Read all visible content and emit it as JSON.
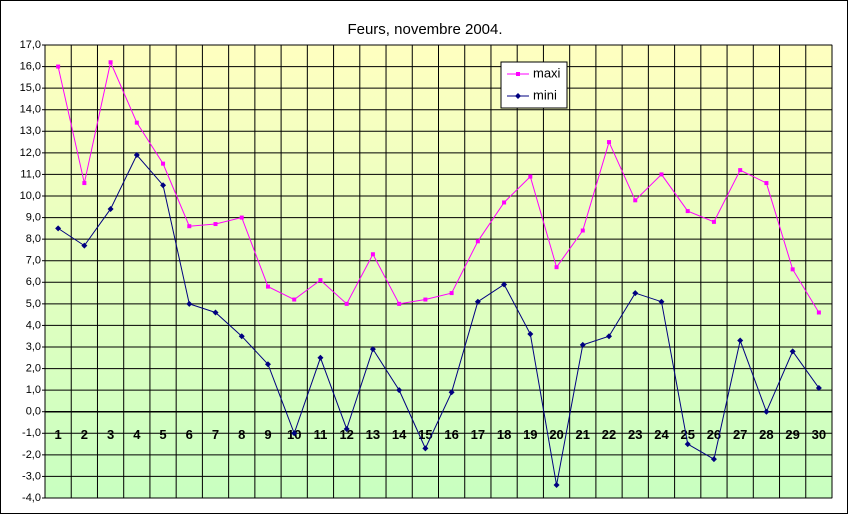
{
  "chart_data": {
    "type": "line",
    "title": "Feurs, novembre 2004.",
    "categories": [
      "1",
      "2",
      "3",
      "4",
      "5",
      "6",
      "7",
      "8",
      "9",
      "10",
      "11",
      "12",
      "13",
      "14",
      "15",
      "16",
      "17",
      "18",
      "19",
      "20",
      "21",
      "22",
      "23",
      "24",
      "25",
      "26",
      "27",
      "28",
      "29",
      "30"
    ],
    "series": [
      {
        "name": "maxi",
        "color": "#ff00ff",
        "marker": "square",
        "values": [
          16.0,
          10.6,
          16.2,
          13.4,
          11.5,
          8.6,
          8.7,
          9.0,
          5.8,
          5.2,
          6.1,
          5.0,
          7.3,
          5.0,
          5.2,
          5.5,
          7.9,
          9.7,
          10.9,
          6.7,
          8.4,
          12.5,
          9.8,
          11.0,
          9.3,
          8.8,
          11.2,
          10.6,
          6.6,
          4.6
        ]
      },
      {
        "name": "mini",
        "color": "#000080",
        "marker": "diamond",
        "values": [
          8.5,
          7.7,
          9.4,
          11.9,
          10.5,
          5.0,
          4.6,
          3.5,
          2.2,
          -1.0,
          2.5,
          -0.8,
          2.9,
          1.0,
          -1.7,
          0.9,
          5.1,
          5.9,
          3.6,
          -3.4,
          3.1,
          3.5,
          5.5,
          5.1,
          -1.5,
          -2.2,
          3.3,
          0.0,
          2.8,
          1.1
        ]
      }
    ],
    "ylim": [
      -4,
      17
    ],
    "yticks": [
      {
        "value": 17,
        "label": "17,0"
      },
      {
        "value": 16,
        "label": "16,0"
      },
      {
        "value": 15,
        "label": "15,0"
      },
      {
        "value": 14,
        "label": "14,0"
      },
      {
        "value": 13,
        "label": "13,0"
      },
      {
        "value": 12,
        "label": "12,0"
      },
      {
        "value": 11,
        "label": "11,0"
      },
      {
        "value": 10,
        "label": "10,0"
      },
      {
        "value": 9,
        "label": "9,0"
      },
      {
        "value": 8,
        "label": "8,0"
      },
      {
        "value": 7,
        "label": "7,0"
      },
      {
        "value": 6,
        "label": "6,0"
      },
      {
        "value": 5,
        "label": "5,0"
      },
      {
        "value": 4,
        "label": "4,0"
      },
      {
        "value": 3,
        "label": "3,0"
      },
      {
        "value": 2,
        "label": "2,0"
      },
      {
        "value": 1,
        "label": "1,0"
      },
      {
        "value": 0,
        "label": "0,0"
      },
      {
        "value": -1,
        "label": "-1,0"
      },
      {
        "value": -2,
        "label": "-2,0"
      },
      {
        "value": -3,
        "label": "-3,0"
      },
      {
        "value": -4,
        "label": "-4,0"
      }
    ],
    "grid": true,
    "legend": "top-right"
  }
}
